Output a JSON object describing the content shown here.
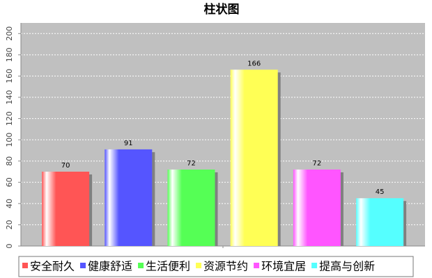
{
  "chart_data": {
    "type": "bar",
    "title": "柱状图",
    "categories": [
      "安全耐久",
      "健康舒适",
      "生活便利",
      "资源节约",
      "环境宜居",
      "提高与创新"
    ],
    "values": [
      70,
      91,
      72,
      166,
      72,
      45
    ],
    "colors": [
      "#ff5555",
      "#5555ff",
      "#55ff55",
      "#ffff55",
      "#ff55ff",
      "#55ffff"
    ],
    "ylim": [
      0,
      210
    ],
    "yticks": [
      0,
      20,
      40,
      60,
      80,
      100,
      120,
      140,
      160,
      180,
      200
    ],
    "grid": true
  }
}
